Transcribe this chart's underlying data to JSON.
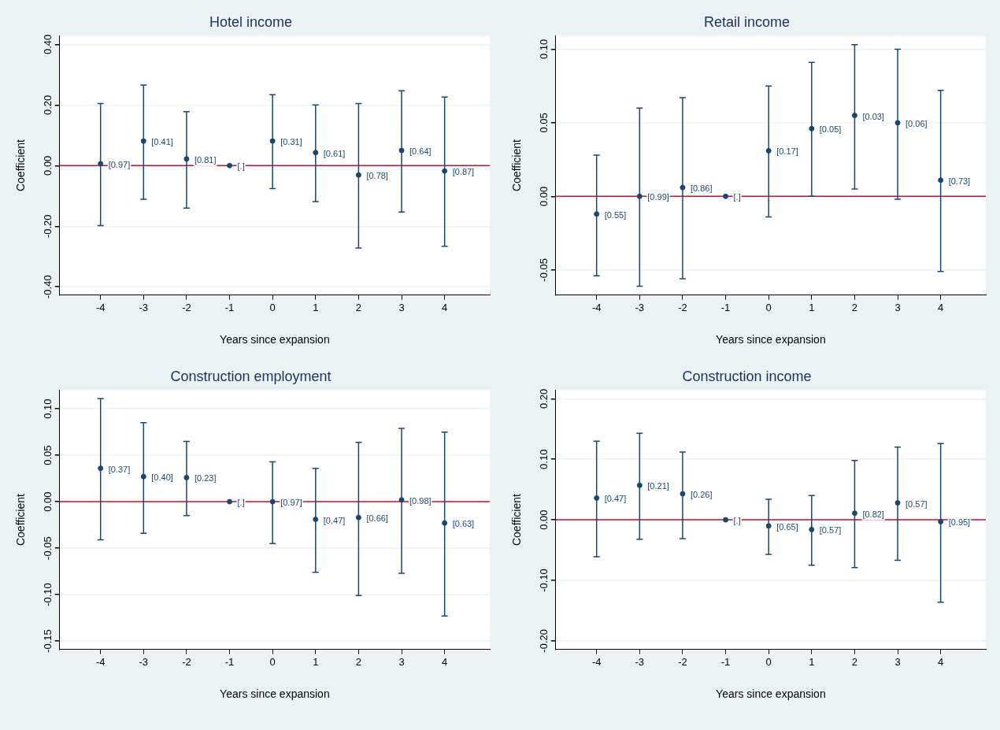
{
  "chart_data": [
    {
      "type": "scatter",
      "title": "Hotel income",
      "xlabel": "Years since expansion",
      "ylabel": "Coefficient",
      "color": "#1a476f",
      "marker": "circle",
      "grid": "y",
      "x": [
        -4,
        -3,
        -2,
        -1,
        0,
        1,
        2,
        3,
        4
      ],
      "values": [
        0.006,
        0.081,
        0.022,
        0.0,
        0.081,
        0.043,
        -0.031,
        0.05,
        -0.018
      ],
      "errors": [
        [
          -0.198,
          0.205
        ],
        [
          -0.111,
          0.266
        ],
        [
          -0.14,
          0.178
        ],
        null,
        [
          -0.076,
          0.234
        ],
        [
          -0.119,
          0.2
        ],
        [
          -0.272,
          0.205
        ],
        [
          -0.153,
          0.247
        ],
        [
          -0.266,
          0.226
        ]
      ],
      "annotations": [
        {
          "text": "[0.97]",
          "x": -4,
          "y": 0.006
        },
        {
          "text": "[0.41]",
          "x": -3,
          "y": 0.081
        },
        {
          "text": "[0.81]",
          "x": -2,
          "y": 0.022
        },
        {
          "text": "[.]",
          "x": -1,
          "y": 0.0
        },
        {
          "text": "[0.31]",
          "x": 0,
          "y": 0.081
        },
        {
          "text": "[0.61]",
          "x": 1,
          "y": 0.043
        },
        {
          "text": "[0.78]",
          "x": 2,
          "y": -0.031
        },
        {
          "text": "[0.64]",
          "x": 3,
          "y": 0.05
        },
        {
          "text": "[0.87]",
          "x": 4,
          "y": -0.018
        }
      ],
      "xlim": [
        -4.95,
        5.05
      ],
      "xticks": [
        -4,
        -3,
        -2,
        -1,
        0,
        1,
        2,
        3,
        4
      ],
      "ylim": [
        -0.427,
        0.428
      ],
      "yticks": [
        {
          "value": -0.4,
          "label": "-0.40"
        },
        {
          "value": -0.2,
          "label": "-0.20"
        },
        {
          "value": 0,
          "label": "0.00"
        },
        {
          "value": 0.2,
          "label": "0.20"
        },
        {
          "value": 0.4,
          "label": "0.40"
        }
      ],
      "ref_lines": [
        {
          "axis": "y",
          "value": 0,
          "color": "#c8102e"
        }
      ]
    },
    {
      "type": "scatter",
      "title": "Retail income",
      "xlabel": "Years since expansion",
      "ylabel": "Coefficient",
      "color": "#1a476f",
      "marker": "circle",
      "grid": "y",
      "x": [
        -4,
        -3,
        -2,
        -1,
        0,
        1,
        2,
        3,
        4
      ],
      "values": [
        -0.012,
        0.0,
        0.006,
        0.0,
        0.031,
        0.046,
        0.055,
        0.05,
        0.011
      ],
      "errors": [
        [
          -0.054,
          0.028
        ],
        [
          -0.061,
          0.06
        ],
        [
          -0.056,
          0.067
        ],
        null,
        [
          -0.014,
          0.075
        ],
        [
          0.0,
          0.091
        ],
        [
          0.005,
          0.103
        ],
        [
          -0.002,
          0.1
        ],
        [
          -0.051,
          0.072
        ]
      ],
      "annotations": [
        {
          "text": "[0.55]",
          "x": -4,
          "y": -0.012
        },
        {
          "text": "[0.99]",
          "x": -3,
          "y": 0.0
        },
        {
          "text": "[0.86]",
          "x": -2,
          "y": 0.006
        },
        {
          "text": "[.]",
          "x": -1,
          "y": 0.0
        },
        {
          "text": "[0.17]",
          "x": 0,
          "y": 0.031
        },
        {
          "text": "[0.05]",
          "x": 1,
          "y": 0.046
        },
        {
          "text": "[0.03]",
          "x": 2,
          "y": 0.055
        },
        {
          "text": "[0.06]",
          "x": 3,
          "y": 0.05
        },
        {
          "text": "[0.73]",
          "x": 4,
          "y": 0.011
        }
      ],
      "xlim": [
        -4.95,
        5.05
      ],
      "xticks": [
        -4,
        -3,
        -2,
        -1,
        0,
        1,
        2,
        3,
        4
      ],
      "ylim": [
        -0.067,
        0.109
      ],
      "yticks": [
        {
          "value": -0.05,
          "label": "-0.05"
        },
        {
          "value": 0,
          "label": "0.00"
        },
        {
          "value": 0.05,
          "label": "0.05"
        },
        {
          "value": 0.1,
          "label": "0.10"
        }
      ],
      "ref_lines": [
        {
          "axis": "y",
          "value": 0,
          "color": "#c8102e"
        }
      ]
    },
    {
      "type": "scatter",
      "title": "Construction employment",
      "xlabel": "Years since expansion",
      "ylabel": "Coefficient",
      "color": "#1a476f",
      "marker": "circle",
      "grid": "y",
      "x": [
        -4,
        -3,
        -2,
        -1,
        0,
        1,
        2,
        3,
        4
      ],
      "values": [
        0.036,
        0.027,
        0.026,
        0.0,
        0.0,
        -0.019,
        -0.017,
        0.002,
        -0.023
      ],
      "errors": [
        [
          -0.041,
          0.111
        ],
        [
          -0.034,
          0.085
        ],
        [
          -0.015,
          0.065
        ],
        null,
        [
          -0.045,
          0.043
        ],
        [
          -0.076,
          0.036
        ],
        [
          -0.101,
          0.064
        ],
        [
          -0.077,
          0.079
        ],
        [
          -0.123,
          0.075
        ]
      ],
      "annotations": [
        {
          "text": "[0.37]",
          "x": -4,
          "y": 0.036
        },
        {
          "text": "[0.40]",
          "x": -3,
          "y": 0.027
        },
        {
          "text": "[0.23]",
          "x": -2,
          "y": 0.026
        },
        {
          "text": "[.]",
          "x": -1,
          "y": 0.0
        },
        {
          "text": "[0.97]",
          "x": 0,
          "y": 0.0
        },
        {
          "text": "[0.47]",
          "x": 1,
          "y": -0.019
        },
        {
          "text": "[0.66]",
          "x": 2,
          "y": -0.017
        },
        {
          "text": "[0.98]",
          "x": 3,
          "y": 0.002
        },
        {
          "text": "[0.63]",
          "x": 4,
          "y": -0.023
        }
      ],
      "xlim": [
        -4.95,
        5.05
      ],
      "xticks": [
        -4,
        -3,
        -2,
        -1,
        0,
        1,
        2,
        3,
        4
      ],
      "ylim": [
        -0.159,
        0.12
      ],
      "yticks": [
        {
          "value": -0.15,
          "label": "-0.15"
        },
        {
          "value": -0.1,
          "label": "-0.10"
        },
        {
          "value": -0.05,
          "label": "-0.05"
        },
        {
          "value": 0,
          "label": "0.00"
        },
        {
          "value": 0.05,
          "label": "0.05"
        },
        {
          "value": 0.1,
          "label": "0.10"
        }
      ],
      "ref_lines": [
        {
          "axis": "y",
          "value": 0,
          "color": "#c8102e"
        }
      ]
    },
    {
      "type": "scatter",
      "title": "Construction income",
      "xlabel": "Years since expansion",
      "ylabel": "Coefficient",
      "color": "#1a476f",
      "marker": "circle",
      "grid": "y",
      "x": [
        -4,
        -3,
        -2,
        -1,
        0,
        1,
        2,
        3,
        4
      ],
      "values": [
        0.036,
        0.057,
        0.043,
        0.0,
        -0.01,
        -0.016,
        0.011,
        0.028,
        -0.003
      ],
      "errors": [
        [
          -0.061,
          0.13
        ],
        [
          -0.032,
          0.143
        ],
        [
          -0.031,
          0.112
        ],
        null,
        [
          -0.057,
          0.034
        ],
        [
          -0.075,
          0.04
        ],
        [
          -0.079,
          0.098
        ],
        [
          -0.067,
          0.12
        ],
        [
          -0.136,
          0.126
        ]
      ],
      "annotations": [
        {
          "text": "[0.47]",
          "x": -4,
          "y": 0.036
        },
        {
          "text": "[0.21]",
          "x": -3,
          "y": 0.057
        },
        {
          "text": "[0.26]",
          "x": -2,
          "y": 0.043
        },
        {
          "text": "[.]",
          "x": -1,
          "y": 0.0
        },
        {
          "text": "[0.65]",
          "x": 0,
          "y": -0.01
        },
        {
          "text": "[0.57]",
          "x": 1,
          "y": -0.016
        },
        {
          "text": "[0.82]",
          "x": 2,
          "y": 0.011
        },
        {
          "text": "[0.57]",
          "x": 3,
          "y": 0.028
        },
        {
          "text": "[0.95]",
          "x": 4,
          "y": -0.003
        }
      ],
      "xlim": [
        -4.95,
        5.05
      ],
      "xticks": [
        -4,
        -3,
        -2,
        -1,
        0,
        1,
        2,
        3,
        4
      ],
      "ylim": [
        -0.214,
        0.214
      ],
      "yticks": [
        {
          "value": -0.2,
          "label": "-0.20"
        },
        {
          "value": -0.1,
          "label": "-0.10"
        },
        {
          "value": 0,
          "label": "0.00"
        },
        {
          "value": 0.1,
          "label": "0.10"
        },
        {
          "value": 0.2,
          "label": "0.20"
        }
      ],
      "ref_lines": [
        {
          "axis": "y",
          "value": 0,
          "color": "#c8102e"
        }
      ]
    }
  ]
}
